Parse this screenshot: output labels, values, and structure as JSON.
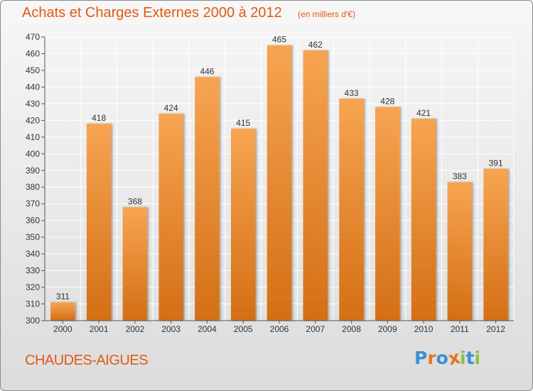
{
  "title": "Achats et Charges Externes 2000 à 2012",
  "subtitle": "(en milliers d'€)",
  "commune": "CHAUDES-AIGUES",
  "logo": {
    "text": "Proxiti",
    "letter_colors": [
      "#3a8fd6",
      "#e8731c",
      "#3a8fd6",
      "#e8731c",
      "#8bc34a",
      "#3a8fd6",
      "#8bc34a"
    ]
  },
  "colors": {
    "title": "#e05a14",
    "bar_top": "#f7a451",
    "bar_bottom": "#d46f15",
    "grid": "#ffffff",
    "text": "#333333"
  },
  "chart_data": {
    "type": "bar",
    "categories": [
      "2000",
      "2001",
      "2002",
      "2003",
      "2004",
      "2005",
      "2006",
      "2007",
      "2008",
      "2009",
      "2010",
      "2011",
      "2012"
    ],
    "values": [
      311,
      418,
      368,
      424,
      446,
      415,
      465,
      462,
      433,
      428,
      421,
      383,
      391
    ],
    "ylim": [
      300,
      470
    ],
    "yticks": [
      300,
      310,
      320,
      330,
      340,
      350,
      360,
      370,
      380,
      390,
      400,
      410,
      420,
      430,
      440,
      450,
      460,
      470
    ],
    "grid": true,
    "data_labels": true
  }
}
